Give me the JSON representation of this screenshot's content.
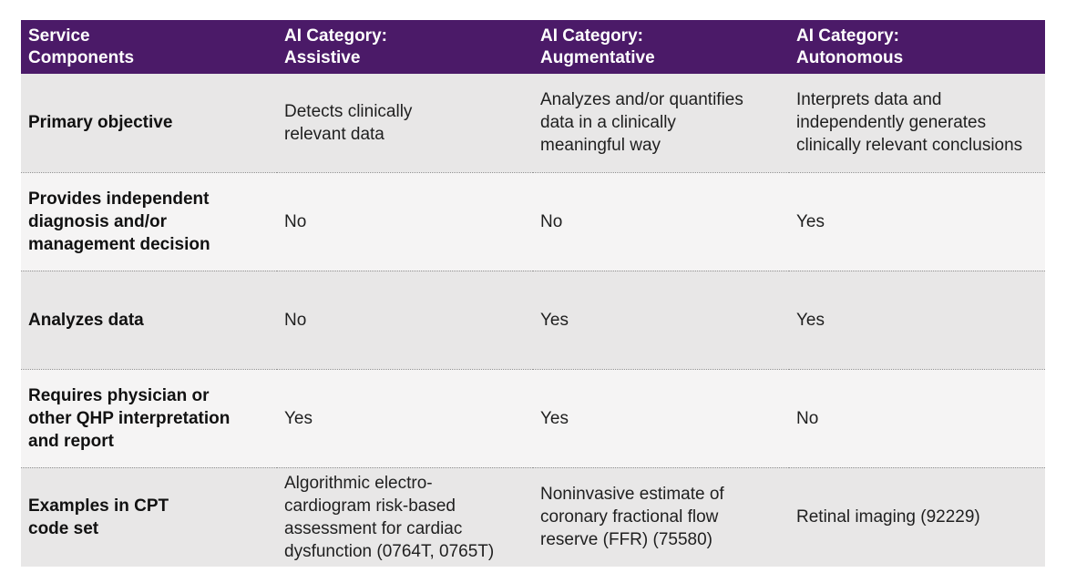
{
  "table": {
    "headers": [
      "Service\nComponents",
      "AI Category:\nAssistive",
      "AI Category:\nAugmentative",
      "AI Category:\nAutonomous"
    ],
    "rows": [
      {
        "label": "Primary objective",
        "cells": [
          "Detects clinically\nrelevant data",
          "Analyzes and/or quantifies\ndata in a clinically\nmeaningful way",
          "Interprets data and\nindependently generates\nclinically relevant conclusions"
        ]
      },
      {
        "label": "Provides independent\ndiagnosis and/or\nmanagement decision",
        "cells": [
          "No",
          "No",
          "Yes"
        ]
      },
      {
        "label": "Analyzes data",
        "cells": [
          "No",
          "Yes",
          "Yes"
        ]
      },
      {
        "label": "Requires physician or\nother QHP interpretation\nand report",
        "cells": [
          "Yes",
          "Yes",
          "No"
        ]
      },
      {
        "label": "Examples in CPT\ncode set",
        "cells": [
          "Algorithmic electro-\ncardiogram risk-based\nassessment for cardiac\ndysfunction (0764T, 0765T)",
          "Noninvasive estimate of\ncoronary fractional flow\nreserve (FFR) (75580)",
          "Retinal imaging (92229)"
        ]
      }
    ]
  },
  "colors": {
    "header_bg": "#4b1a68",
    "header_text": "#ffffff",
    "row_gray": "#e8e7e7",
    "row_light": "#f5f4f4"
  }
}
